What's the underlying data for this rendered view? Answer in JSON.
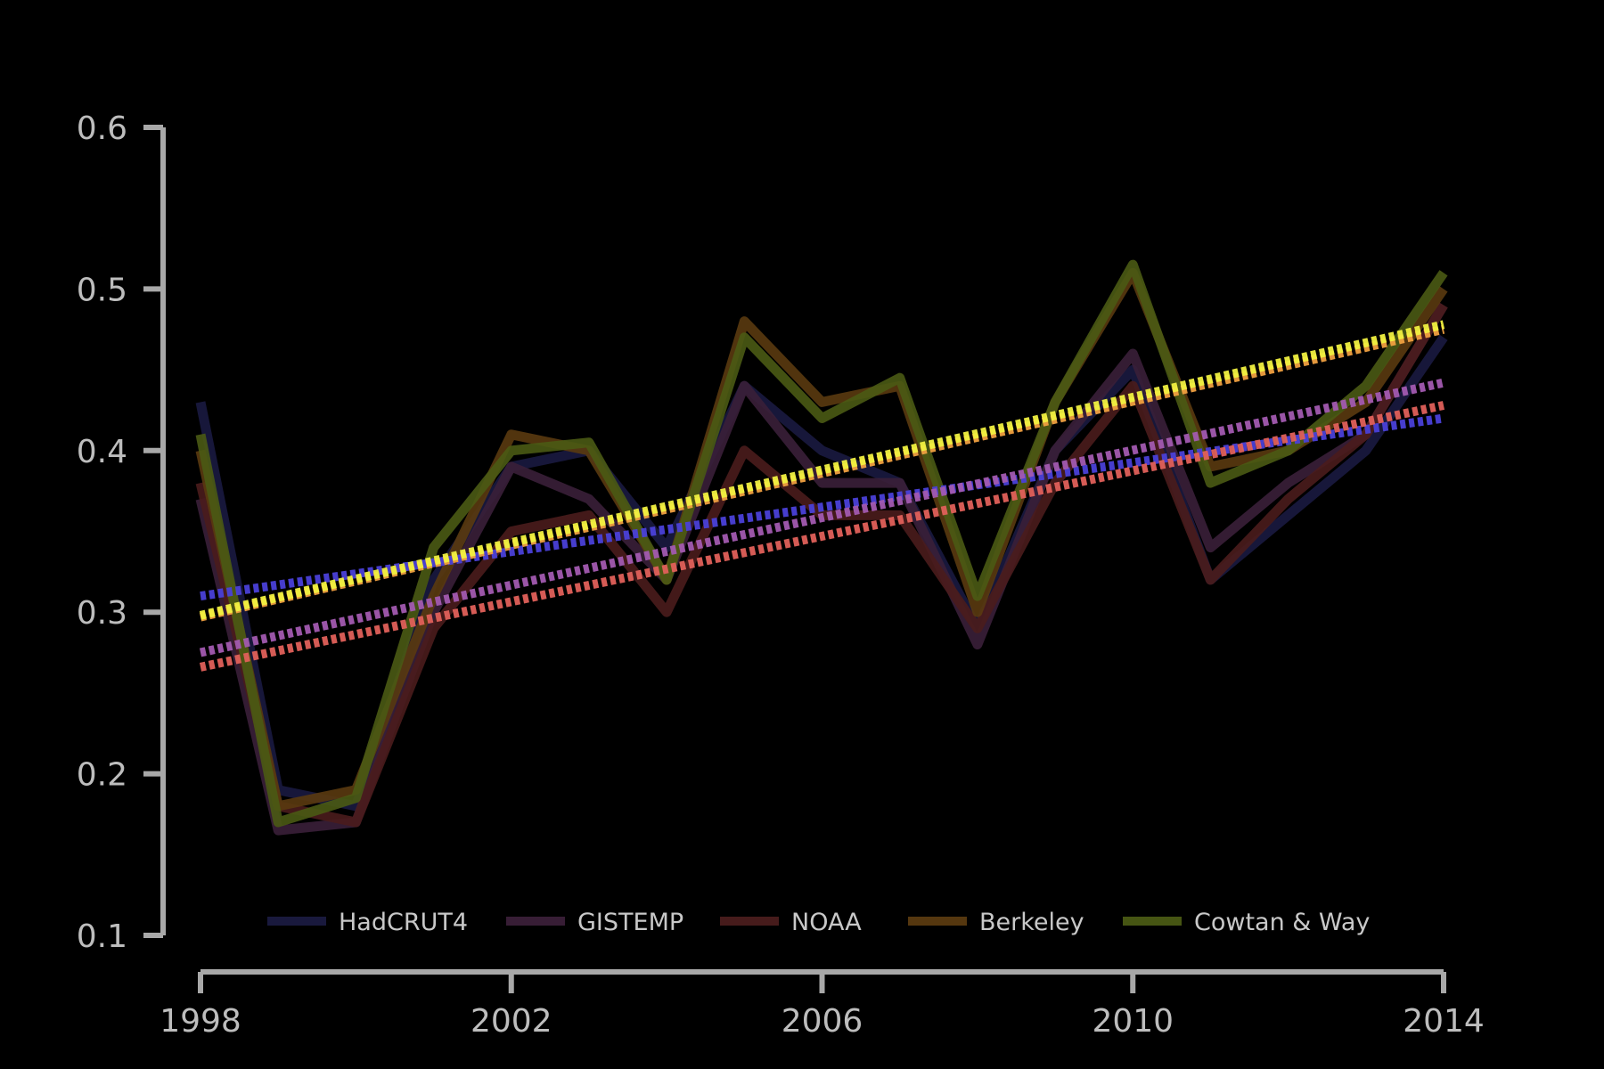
{
  "chart_data": {
    "type": "line",
    "x": [
      1998,
      1999,
      2000,
      2001,
      2002,
      2003,
      2004,
      2005,
      2006,
      2007,
      2008,
      2009,
      2010,
      2011,
      2012,
      2013,
      2014
    ],
    "xticks": [
      1998,
      2002,
      2006,
      2010,
      2014
    ],
    "yticks": [
      0.1,
      0.2,
      0.3,
      0.4,
      0.5,
      0.6
    ],
    "xlim": [
      1998,
      2014
    ],
    "ylim": [
      0.1,
      0.6
    ],
    "grid": false,
    "legend_position": "bottom",
    "series": [
      {
        "name": "HadCRUT4",
        "color": "#1a1a40",
        "trend_color": "#4a40d8",
        "trend": [
          0.31,
          0.42
        ],
        "values": [
          0.43,
          0.19,
          0.18,
          0.32,
          0.39,
          0.4,
          0.34,
          0.44,
          0.4,
          0.38,
          0.29,
          0.4,
          0.45,
          0.32,
          0.36,
          0.4,
          0.47
        ]
      },
      {
        "name": "GISTEMP",
        "color": "#3a1f38",
        "trend_color": "#a25ab0",
        "trend": [
          0.275,
          0.442
        ],
        "values": [
          0.37,
          0.165,
          0.17,
          0.3,
          0.39,
          0.37,
          0.32,
          0.44,
          0.38,
          0.38,
          0.28,
          0.4,
          0.46,
          0.34,
          0.38,
          0.41,
          0.49
        ]
      },
      {
        "name": "NOAA",
        "color": "#4a1c1c",
        "trend_color": "#e0605a",
        "trend": [
          0.266,
          0.428
        ],
        "values": [
          0.38,
          0.18,
          0.17,
          0.29,
          0.35,
          0.36,
          0.3,
          0.4,
          0.36,
          0.36,
          0.29,
          0.38,
          0.44,
          0.32,
          0.37,
          0.41,
          0.49
        ]
      },
      {
        "name": "Berkeley",
        "color": "#5a3a10",
        "trend_color": "#f0a040",
        "trend": [
          0.297,
          0.475
        ],
        "values": [
          0.4,
          0.18,
          0.19,
          0.31,
          0.41,
          0.4,
          0.32,
          0.48,
          0.43,
          0.44,
          0.3,
          0.43,
          0.51,
          0.39,
          0.4,
          0.43,
          0.5
        ]
      },
      {
        "name": "Cowtan & Way",
        "color": "#4a5a14",
        "trend_color": "#f0f040",
        "trend": [
          0.298,
          0.478
        ],
        "values": [
          0.41,
          0.17,
          0.185,
          0.34,
          0.4,
          0.405,
          0.32,
          0.47,
          0.42,
          0.445,
          0.31,
          0.43,
          0.515,
          0.38,
          0.4,
          0.44,
          0.51
        ]
      }
    ]
  }
}
